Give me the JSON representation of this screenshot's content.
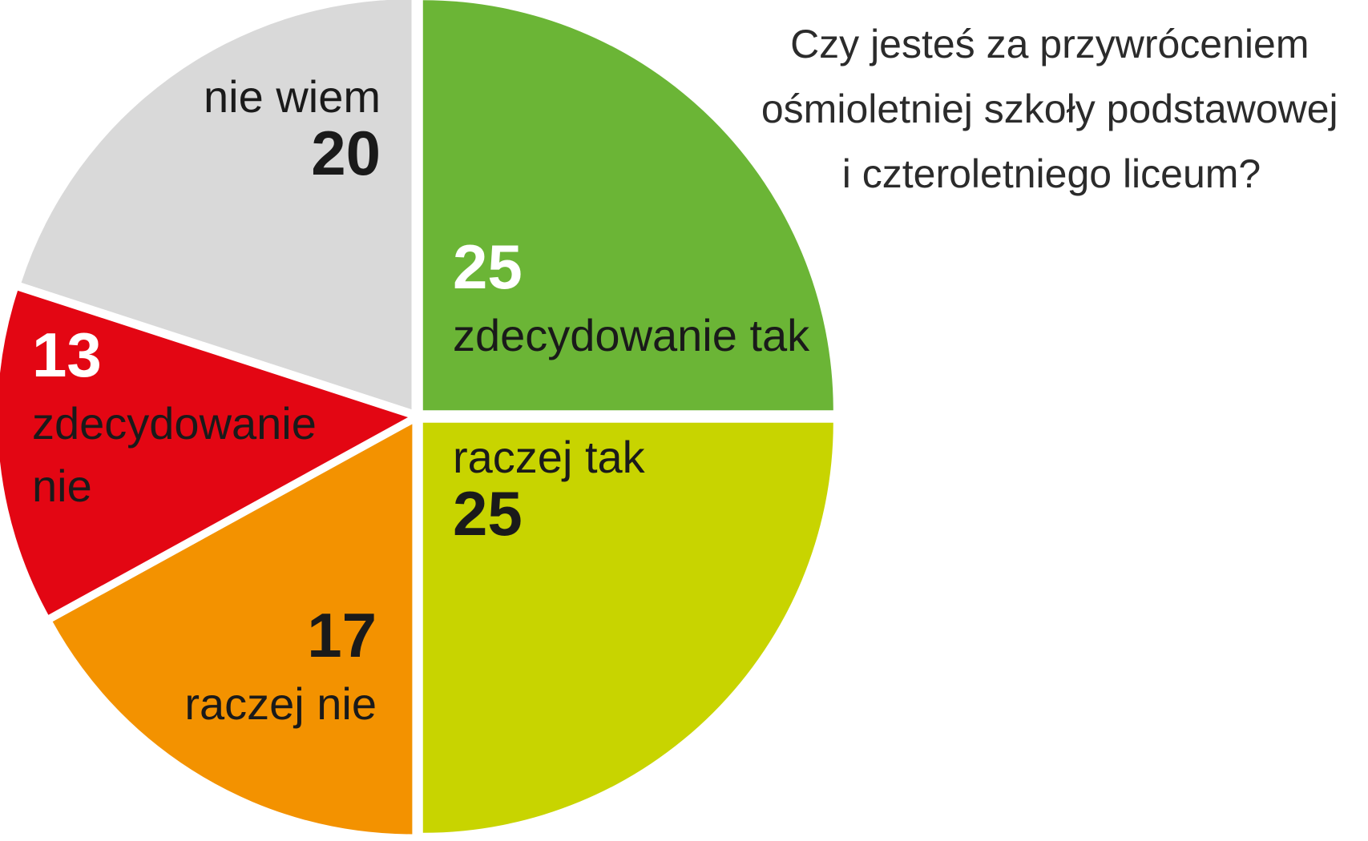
{
  "chart_data": {
    "type": "pie",
    "title_lines": [
      "Czy jesteś za przywróceniem",
      "ośmioletniej szkoły podstawowej",
      "i czteroletniego liceum?"
    ],
    "slices": [
      {
        "value": 25,
        "value_label": "25",
        "label_lines": [
          "zdecydowanie tak"
        ],
        "color": "#6bb536",
        "text_color": "#ffffff",
        "label_color": "#1a1a1a",
        "order": "number-first"
      },
      {
        "value": 25,
        "value_label": "25",
        "label_lines": [
          "raczej tak"
        ],
        "color": "#c8d400",
        "text_color": "#1a1a1a",
        "label_color": "#1a1a1a",
        "order": "label-first"
      },
      {
        "value": 17,
        "value_label": "17",
        "label_lines": [
          "raczej nie"
        ],
        "color": "#f39200",
        "text_color": "#1a1a1a",
        "label_color": "#1a1a1a",
        "order": "number-first"
      },
      {
        "value": 13,
        "value_label": "13",
        "label_lines": [
          "zdecydowanie",
          "nie"
        ],
        "color": "#e30613",
        "text_color": "#ffffff",
        "label_color": "#1a1a1a",
        "order": "number-first"
      },
      {
        "value": 20,
        "value_label": "20",
        "label_lines": [
          "nie wiem"
        ],
        "color": "#d9d9d9",
        "text_color": "#1a1a1a",
        "label_color": "#1a1a1a",
        "order": "label-first"
      }
    ]
  }
}
